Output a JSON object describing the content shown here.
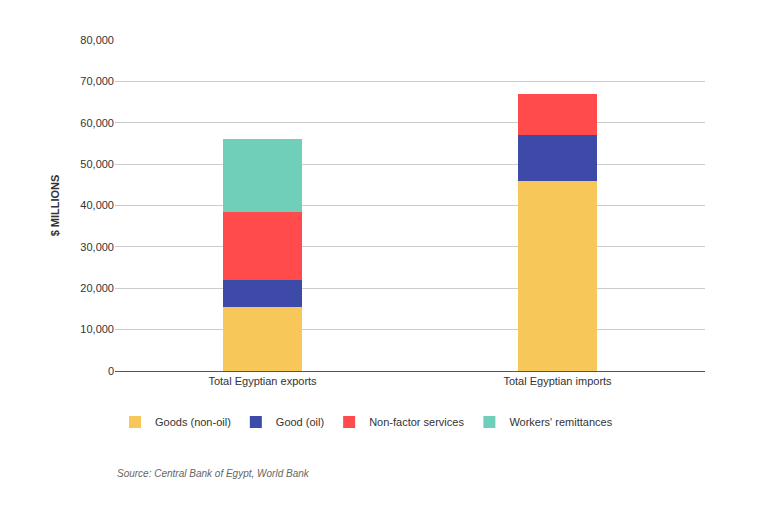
{
  "chart_data": {
    "type": "bar",
    "stacked": true,
    "y_label": "$ MILLIONS",
    "categories": [
      "Total Egyptian exports",
      "Total Egyptian imports"
    ],
    "series": [
      {
        "name": "Goods (non-oil)",
        "color": "#f7c75a",
        "values": [
          15500,
          46000
        ]
      },
      {
        "name": "Good (oil)",
        "color": "#3d4aa8",
        "values": [
          6500,
          11000
        ]
      },
      {
        "name": "Non-factor services",
        "color": "#ff4b4b",
        "values": [
          16500,
          10000
        ]
      },
      {
        "name": "Workers' remittances",
        "color": "#6fcfb8",
        "values": [
          17500,
          0
        ]
      }
    ],
    "ylim": [
      0,
      80000
    ],
    "yticks": [
      0,
      {
        "value": 10000,
        "label": "10,000"
      },
      {
        "value": 20000,
        "label": "20,000"
      },
      {
        "value": 30000,
        "label": "30,000"
      },
      {
        "value": 40000,
        "label": "40,000"
      },
      {
        "value": 50000,
        "label": "50,000"
      },
      {
        "value": 60000,
        "label": "60,000"
      },
      {
        "value": 70000,
        "label": "70,000"
      },
      {
        "value": 80000,
        "label": "80,000"
      }
    ],
    "grid": true,
    "legend": "bottom left",
    "annotations": [
      "Source: Central Bank of Egypt, World Bank"
    ]
  }
}
